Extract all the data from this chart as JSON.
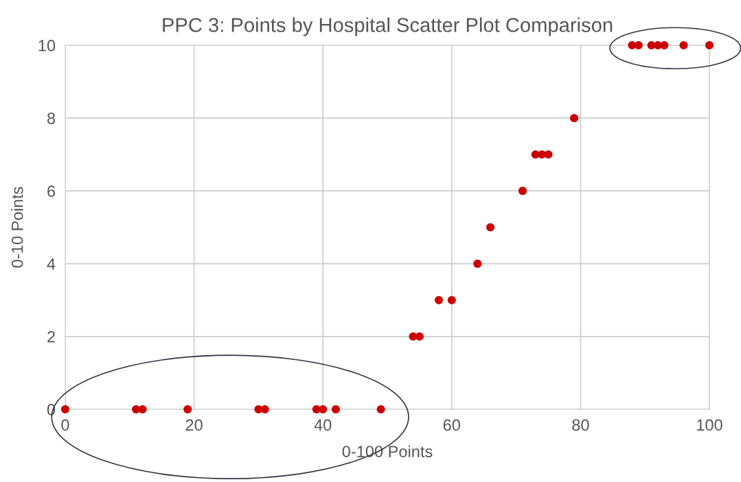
{
  "chart_data": {
    "type": "scatter",
    "title": "PPC 3: Points by Hospital Scatter Plot Comparison",
    "xlabel": "0-100 Points",
    "ylabel": "0-10 Points",
    "series": [
      {
        "color": "#cc0000",
        "x": [
          0,
          11,
          12,
          19,
          30,
          31,
          39,
          40,
          42,
          49,
          54,
          55,
          58,
          60,
          64,
          66,
          71,
          73,
          74,
          75,
          79,
          88,
          89,
          91,
          92,
          93,
          96,
          100
        ],
        "values": [
          0,
          0,
          0,
          0,
          0,
          0,
          0,
          0,
          0,
          0,
          2,
          2,
          3,
          3,
          4,
          5,
          6,
          7,
          7,
          7,
          8,
          10,
          10,
          10,
          10,
          10,
          10,
          10
        ]
      }
    ],
    "xlim": [
      0,
      100
    ],
    "ylim": [
      0,
      10
    ],
    "xticks": [
      0,
      20,
      40,
      60,
      80,
      100
    ],
    "yticks": [
      0,
      2,
      4,
      6,
      8,
      10
    ],
    "grid": true,
    "marker": "circle"
  }
}
